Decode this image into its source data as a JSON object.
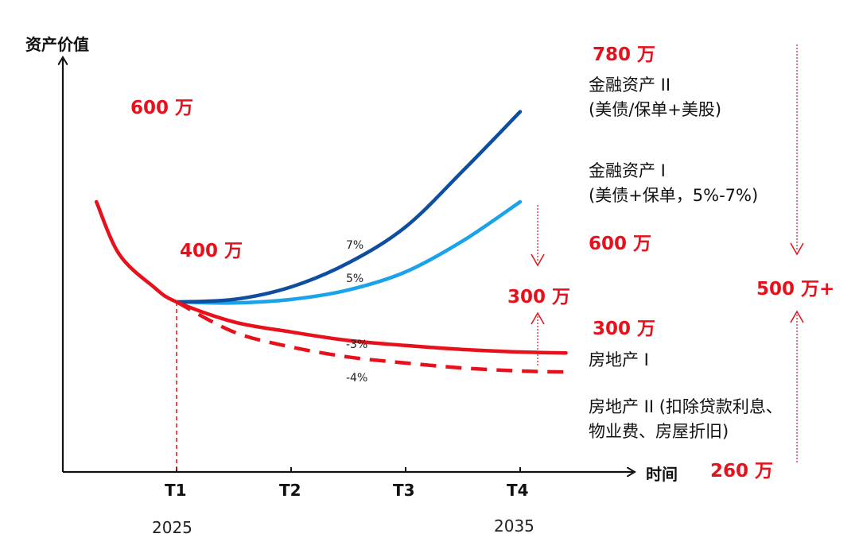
{
  "chart_data": {
    "type": "line",
    "ylabel": "资产价值",
    "xlabel": "时间",
    "x_ticks": [
      "T1",
      "T2",
      "T3",
      "T4"
    ],
    "x_years": [
      {
        "at": "T1",
        "label": "2025"
      },
      {
        "at": "T4",
        "label": "2035"
      }
    ],
    "legend": "none",
    "grid": false,
    "series": [
      {
        "id": "fin2",
        "color": "#0d4e9f",
        "label_lines": [
          "金融资产 II",
          "(美债/保单+美股)"
        ],
        "rate": "7%",
        "points": [
          [
            1.0,
            400
          ],
          [
            1.5,
            405
          ],
          [
            2.0,
            430
          ],
          [
            2.5,
            478
          ],
          [
            3.0,
            550
          ],
          [
            3.5,
            662
          ],
          [
            4.0,
            780
          ]
        ]
      },
      {
        "id": "fin1",
        "color": "#1aa3e8",
        "label_lines": [
          "金融资产 I",
          "(美债+保单，5%-7%)"
        ],
        "rate": "5%",
        "points": [
          [
            1.0,
            400
          ],
          [
            1.5,
            398
          ],
          [
            2.0,
            405
          ],
          [
            2.5,
            424
          ],
          [
            3.0,
            460
          ],
          [
            3.5,
            522
          ],
          [
            4.0,
            600
          ]
        ]
      },
      {
        "id": "re1",
        "color": "#e8101a",
        "label_lines": [
          "房地产 I"
        ],
        "rate": "-3%",
        "points": [
          [
            0.3,
            600
          ],
          [
            0.5,
            495
          ],
          [
            0.8,
            430
          ],
          [
            1.0,
            400
          ],
          [
            1.5,
            360
          ],
          [
            2.0,
            340
          ],
          [
            2.5,
            323
          ],
          [
            3.0,
            313
          ],
          [
            3.5,
            305
          ],
          [
            4.0,
            300
          ],
          [
            4.4,
            298
          ]
        ]
      },
      {
        "id": "re2",
        "color": "#e8101a",
        "dashed": true,
        "label_lines": [
          "房地产 II (扣除贷款利息、",
          "物业费、房屋折旧)"
        ],
        "rate": "-4%",
        "points": [
          [
            1.0,
            400
          ],
          [
            1.5,
            340
          ],
          [
            2.0,
            310
          ],
          [
            2.5,
            290
          ],
          [
            3.0,
            278
          ],
          [
            3.5,
            268
          ],
          [
            4.0,
            262
          ],
          [
            4.4,
            260
          ]
        ]
      }
    ],
    "value_labels": [
      {
        "id": "v600start",
        "text": "600 万"
      },
      {
        "id": "v400",
        "text": "400 万"
      },
      {
        "id": "v780",
        "text": "780 万"
      },
      {
        "id": "v600",
        "text": "600 万"
      },
      {
        "id": "v300diff",
        "text": "300 万"
      },
      {
        "id": "v300",
        "text": "300 万"
      },
      {
        "id": "v500",
        "text": "500 万+"
      },
      {
        "id": "v260",
        "text": "260 万"
      }
    ],
    "colors": {
      "accent_red": "#e8101a",
      "dark_blue": "#0d4e9f",
      "light_blue": "#1aa3e8"
    }
  }
}
